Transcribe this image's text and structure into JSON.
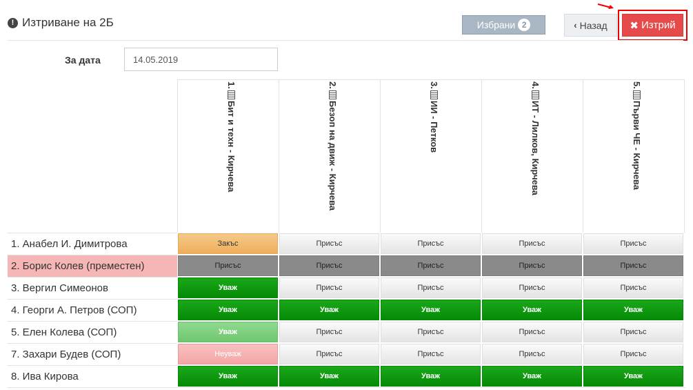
{
  "header": {
    "title_icon": "!",
    "title": "Изтриване на 2Б",
    "selected_label": "Избрани",
    "selected_count": "2",
    "back_label": "Назад",
    "delete_label": "Изтрий"
  },
  "date": {
    "label": "За дата",
    "value": "14.05.2019"
  },
  "colors": {
    "excused": "#068a06",
    "present": "#e4e4e4",
    "late": "#eeae5b",
    "moved_row": "#f7b6b6",
    "delete": "#e64a4a"
  },
  "columns": [
    {
      "number": "1.",
      "label": "Бит и техн - Кирчева"
    },
    {
      "number": "2.",
      "label": "Безоп на движ - Кирчева"
    },
    {
      "number": "3.",
      "label": "ИИ - Петков"
    },
    {
      "number": "4.",
      "label": "ИТ - Лилков, Кирчева"
    },
    {
      "number": "5.",
      "label": "Първи ЧЕ - Кирчева"
    }
  ],
  "students": [
    {
      "name": "1. Анабел И. Димитрова",
      "moved": false,
      "cells": [
        {
          "text": "Закъс",
          "status": "late"
        },
        {
          "text": "Присъс",
          "status": "present"
        },
        {
          "text": "Присъс",
          "status": "present"
        },
        {
          "text": "Присъс",
          "status": "present"
        },
        {
          "text": "Присъс",
          "status": "present"
        }
      ]
    },
    {
      "name": "2. Борис Колев (преместен)",
      "moved": true,
      "cells": [
        {
          "text": "Присъс",
          "status": "gray"
        },
        {
          "text": "Присъс",
          "status": "gray"
        },
        {
          "text": "Присъс",
          "status": "gray"
        },
        {
          "text": "Присъс",
          "status": "gray"
        },
        {
          "text": "Присъс",
          "status": "gray"
        }
      ]
    },
    {
      "name": "3. Вергил Симеонов",
      "moved": false,
      "cells": [
        {
          "text": "Уваж",
          "status": "excused"
        },
        {
          "text": "Присъс",
          "status": "present"
        },
        {
          "text": "Присъс",
          "status": "present"
        },
        {
          "text": "Присъс",
          "status": "present"
        },
        {
          "text": "Присъс",
          "status": "present"
        }
      ]
    },
    {
      "name": "4. Георги А. Петров (СОП)",
      "moved": false,
      "cells": [
        {
          "text": "Уваж",
          "status": "excused"
        },
        {
          "text": "Уваж",
          "status": "excused"
        },
        {
          "text": "Уваж",
          "status": "excused"
        },
        {
          "text": "Уваж",
          "status": "excused"
        },
        {
          "text": "Уваж",
          "status": "excused"
        }
      ]
    },
    {
      "name": "5. Елен Колева (СОП)",
      "moved": false,
      "cells": [
        {
          "text": "Уваж",
          "status": "excused-light"
        },
        {
          "text": "Присъс",
          "status": "present"
        },
        {
          "text": "Присъс",
          "status": "present"
        },
        {
          "text": "Присъс",
          "status": "present"
        },
        {
          "text": "Присъс",
          "status": "present"
        }
      ]
    },
    {
      "name": "7. Захари Будев (СОП)",
      "moved": false,
      "cells": [
        {
          "text": "Неуваж",
          "status": "unexcused"
        },
        {
          "text": "Присъс",
          "status": "present"
        },
        {
          "text": "Присъс",
          "status": "present"
        },
        {
          "text": "Присъс",
          "status": "present"
        },
        {
          "text": "Присъс",
          "status": "present"
        }
      ]
    },
    {
      "name": "8. Ива Кирова",
      "moved": false,
      "cells": [
        {
          "text": "Уваж",
          "status": "excused"
        },
        {
          "text": "Уваж",
          "status": "excused"
        },
        {
          "text": "Уваж",
          "status": "excused"
        },
        {
          "text": "Уваж",
          "status": "excused"
        },
        {
          "text": "Уваж",
          "status": "excused"
        }
      ]
    }
  ]
}
